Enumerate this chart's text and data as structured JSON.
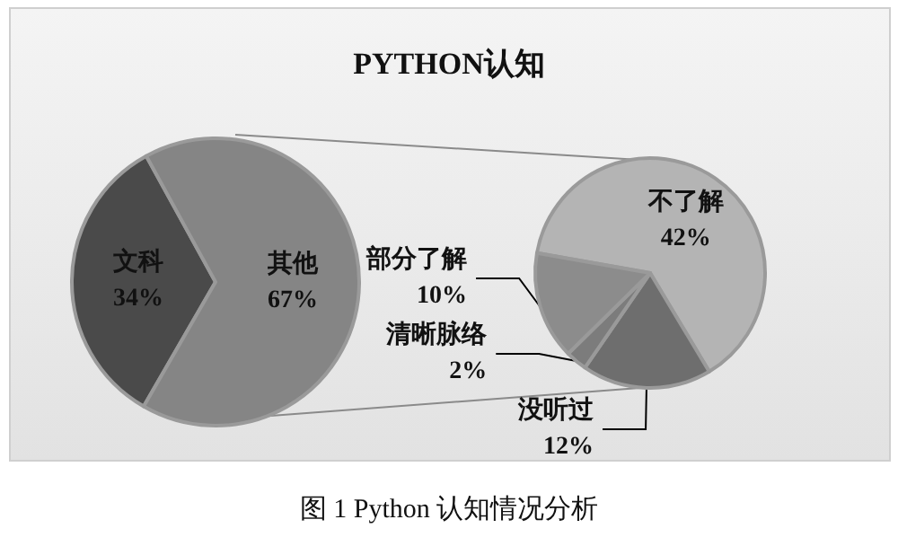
{
  "chart_data": [
    {
      "type": "pie",
      "title": "PYTHON认知",
      "categories": [
        "文科",
        "其他"
      ],
      "values": [
        34,
        67
      ],
      "value_labels": [
        "34%",
        "67%"
      ],
      "colors": [
        "#4a4a4a",
        "#858585"
      ],
      "legend": false,
      "annotations": [
        "图 1 Python 认知情况分析"
      ]
    },
    {
      "type": "pie",
      "categories": [
        "不了解",
        "没听过",
        "清晰脉络",
        "部分了解"
      ],
      "values": [
        42,
        12,
        2,
        10
      ],
      "value_labels": [
        "42%",
        "12%",
        "2%",
        "10%"
      ],
      "colors": [
        "#b4b4b4",
        "#6e6e6e",
        "#7c7c7c",
        "#8c8c8c"
      ],
      "legend": false
    }
  ]
}
